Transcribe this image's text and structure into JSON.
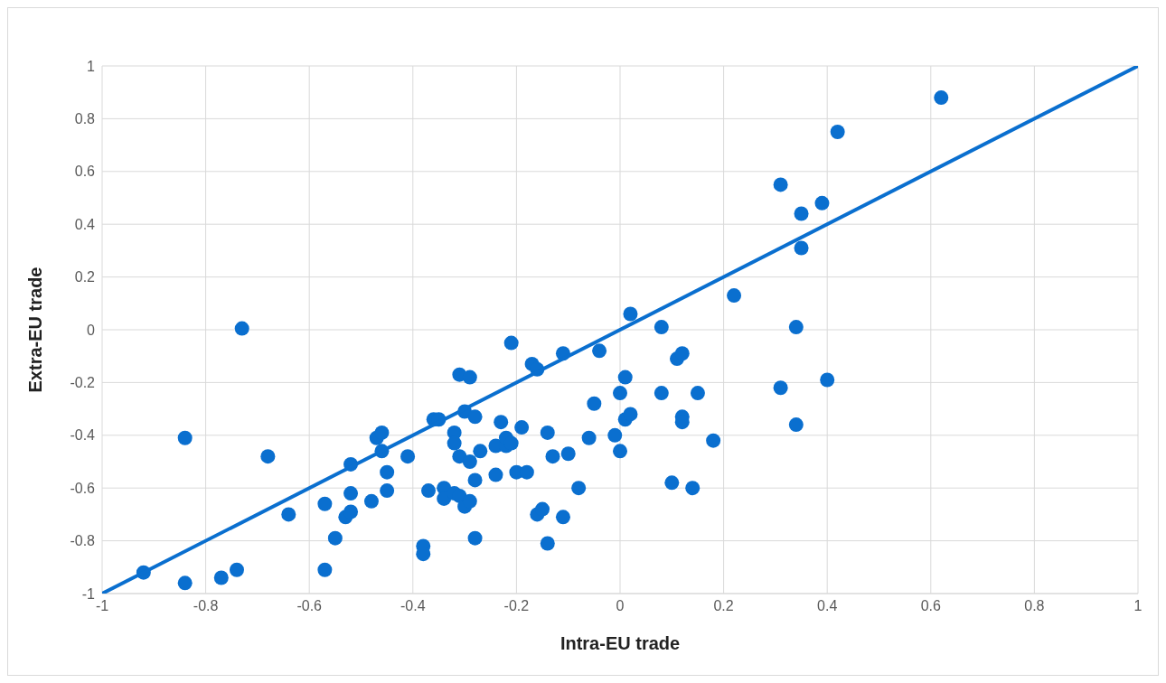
{
  "chart_data": {
    "type": "scatter",
    "xlabel": "Intra-EU trade",
    "ylabel": "Extra-EU trade",
    "xlim": [
      -1,
      1
    ],
    "ylim": [
      -1,
      1
    ],
    "xticks": [
      -1,
      -0.8,
      -0.6,
      -0.4,
      -0.2,
      0,
      0.2,
      0.4,
      0.6,
      0.8,
      1
    ],
    "yticks": [
      -1,
      -0.8,
      -0.6,
      -0.4,
      -0.2,
      0,
      0.2,
      0.4,
      0.6,
      0.8,
      1
    ],
    "grid": true,
    "marker": "circle",
    "series": [
      {
        "color": "#0a6fcf",
        "x": [
          -0.92,
          -0.84,
          -0.84,
          -0.77,
          -0.74,
          -0.73,
          -0.68,
          -0.64,
          -0.57,
          -0.57,
          -0.55,
          -0.53,
          -0.52,
          -0.52,
          -0.52,
          -0.48,
          -0.47,
          -0.46,
          -0.46,
          -0.45,
          -0.45,
          -0.41,
          -0.38,
          -0.38,
          -0.37,
          -0.36,
          -0.35,
          -0.34,
          -0.34,
          -0.32,
          -0.32,
          -0.32,
          -0.31,
          -0.31,
          -0.31,
          -0.3,
          -0.3,
          -0.29,
          -0.29,
          -0.29,
          -0.28,
          -0.28,
          -0.28,
          -0.27,
          -0.24,
          -0.24,
          -0.23,
          -0.22,
          -0.22,
          -0.21,
          -0.21,
          -0.2,
          -0.19,
          -0.18,
          -0.17,
          -0.16,
          -0.16,
          -0.15,
          -0.14,
          -0.14,
          -0.13,
          -0.11,
          -0.11,
          -0.1,
          -0.08,
          -0.06,
          -0.05,
          -0.04,
          -0.01,
          0,
          0,
          0.01,
          0.02,
          0.01,
          0.02,
          0.08,
          0.08,
          0.1,
          0.11,
          0.12,
          0.12,
          0.12,
          0.14,
          0.15,
          0.18,
          0.22,
          0.31,
          0.31,
          0.34,
          0.34,
          0.35,
          0.35,
          0.39,
          0.4,
          0.42,
          0.62
        ],
        "values": [
          -0.92,
          -0.41,
          -0.96,
          -0.94,
          -0.91,
          0.005,
          -0.48,
          -0.7,
          -0.66,
          -0.91,
          -0.79,
          -0.71,
          -0.51,
          -0.62,
          -0.69,
          -0.65,
          -0.41,
          -0.39,
          -0.46,
          -0.54,
          -0.61,
          -0.48,
          -0.82,
          -0.85,
          -0.61,
          -0.34,
          -0.34,
          -0.6,
          -0.64,
          -0.39,
          -0.43,
          -0.62,
          -0.17,
          -0.48,
          -0.63,
          -0.31,
          -0.67,
          -0.65,
          -0.5,
          -0.18,
          -0.33,
          -0.57,
          -0.79,
          -0.46,
          -0.44,
          -0.55,
          -0.35,
          -0.44,
          -0.41,
          -0.43,
          -0.05,
          -0.54,
          -0.37,
          -0.54,
          -0.13,
          -0.15,
          -0.7,
          -0.68,
          -0.39,
          -0.81,
          -0.48,
          -0.09,
          -0.71,
          -0.47,
          -0.6,
          -0.41,
          -0.28,
          -0.08,
          -0.4,
          -0.24,
          -0.46,
          -0.18,
          0.06,
          -0.34,
          -0.32,
          0.01,
          -0.24,
          -0.58,
          -0.11,
          -0.09,
          -0.33,
          -0.35,
          -0.6,
          -0.24,
          -0.42,
          0.13,
          0.55,
          -0.22,
          -0.36,
          0.01,
          0.44,
          0.31,
          0.48,
          -0.19,
          0.75,
          0.88
        ]
      },
      {
        "type": "line",
        "marker": "none",
        "color": "#0a6fcf",
        "x": [
          -1,
          1
        ],
        "values": [
          -1,
          1
        ]
      }
    ]
  }
}
